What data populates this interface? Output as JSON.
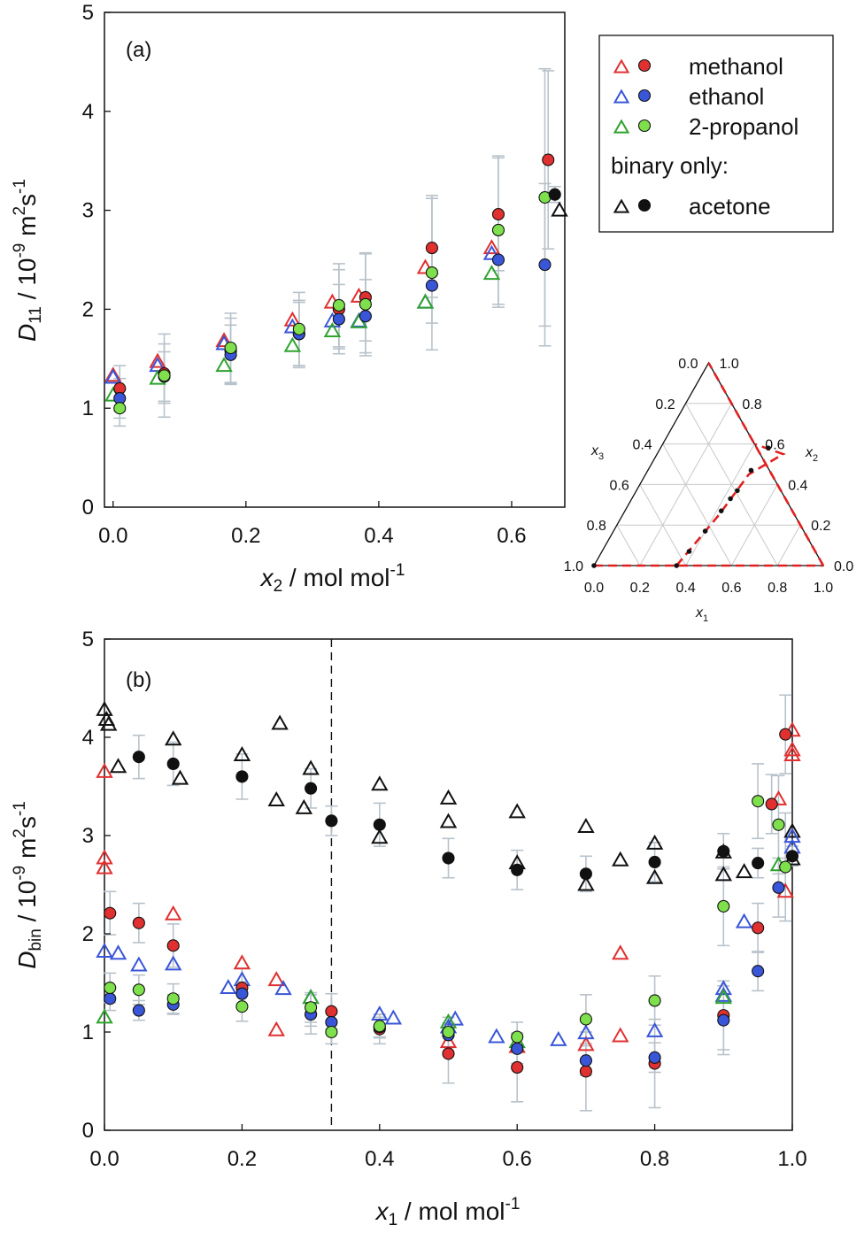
{
  "colors": {
    "methanol": "#e03030",
    "ethanol": "#3a56d8",
    "2-propanol": "#2ea32e",
    "2-propanol_fill": "#7ee04c",
    "acetone": "#111111",
    "errorbar": "#b8c2ca",
    "dashed_red": "#e02020"
  },
  "chart_data": [
    {
      "type": "scatter",
      "panel_label": "(a)",
      "xlabel": {
        "sym": "x",
        "sub": "2",
        "unit": " / mol mol",
        "sup": "-1"
      },
      "ylabel": {
        "sym": "D",
        "sub": "11",
        "unit": " / 10",
        "sup1": "-9",
        "unit2": " m",
        "sup2": "2",
        "unit3": "s",
        "sup3": "-1"
      },
      "xlim": [
        -0.013,
        0.68
      ],
      "ylim": [
        0,
        5
      ],
      "xticks": [
        "0.0",
        "0.2",
        "0.4",
        "0.6"
      ],
      "yticks": [
        "0",
        "1",
        "2",
        "3",
        "4",
        "5"
      ],
      "legend": {
        "entries": [
          "methanol",
          "ethanol",
          "2-propanol"
        ],
        "note": "binary only:",
        "binary_entry": "acetone",
        "placement": "top-right"
      },
      "series": [
        {
          "name": "methanol",
          "marker": "triangle",
          "x": [
            0.0,
            0.067,
            0.167,
            0.27,
            0.33,
            0.37,
            0.47,
            0.57
          ],
          "y": [
            1.33,
            1.47,
            1.68,
            1.89,
            2.07,
            2.13,
            2.42,
            2.62
          ]
        },
        {
          "name": "methanol",
          "marker": "circle",
          "x": [
            0.01,
            0.077,
            0.177,
            0.28,
            0.34,
            0.38,
            0.48,
            0.58,
            0.655
          ],
          "y": [
            1.2,
            1.35,
            1.58,
            1.75,
            2.0,
            2.12,
            2.62,
            2.96,
            3.51
          ],
          "err": [
            0.23,
            0.3,
            0.33,
            0.34,
            0.4,
            0.44,
            0.5,
            0.57,
            0.9
          ]
        },
        {
          "name": "ethanol",
          "marker": "triangle",
          "x": [
            0.0,
            0.067,
            0.167,
            0.27,
            0.33,
            0.37,
            0.47,
            0.57
          ],
          "y": [
            1.31,
            1.43,
            1.65,
            1.82,
            1.88,
            1.88,
            2.07,
            2.56
          ]
        },
        {
          "name": "ethanol",
          "marker": "circle",
          "x": [
            0.01,
            0.077,
            0.177,
            0.28,
            0.34,
            0.38,
            0.48,
            0.58,
            0.65
          ],
          "y": [
            1.1,
            1.32,
            1.54,
            1.75,
            1.9,
            1.93,
            2.24,
            2.5,
            2.45
          ],
          "err": [
            0.2,
            0.25,
            0.3,
            0.32,
            0.35,
            0.37,
            0.38,
            0.48,
            0.82
          ]
        },
        {
          "name": "2-propanol",
          "marker": "triangle",
          "x": [
            0.0,
            0.067,
            0.167,
            0.27,
            0.33,
            0.37,
            0.47,
            0.57
          ],
          "y": [
            1.13,
            1.3,
            1.43,
            1.63,
            1.78,
            1.87,
            2.07,
            2.36
          ]
        },
        {
          "name": "2-propanol",
          "marker": "circle",
          "x": [
            0.01,
            0.077,
            0.177,
            0.28,
            0.34,
            0.38,
            0.48,
            0.58,
            0.65
          ],
          "y": [
            1.0,
            1.33,
            1.61,
            1.8,
            2.04,
            2.05,
            2.37,
            2.8,
            3.13
          ],
          "err": [
            0.18,
            0.42,
            0.35,
            0.37,
            0.42,
            0.52,
            0.78,
            0.75,
            1.3
          ]
        },
        {
          "name": "acetone",
          "marker": "triangle",
          "x": [
            0.672
          ],
          "y": [
            3.0
          ]
        },
        {
          "name": "acetone",
          "marker": "circle",
          "x": [
            0.665
          ],
          "y": [
            3.16
          ],
          "err": [
            0.08
          ]
        }
      ]
    },
    {
      "type": "ternary",
      "axis_labels": {
        "left": {
          "sym": "x",
          "sub": "3"
        },
        "right": {
          "sym": "x",
          "sub": "2"
        },
        "bottom": {
          "sym": "x",
          "sub": "1"
        }
      },
      "ticks": [
        "0.0",
        "0.2",
        "0.4",
        "0.6",
        "0.8",
        "1.0"
      ],
      "points": [
        {
          "x1": 0.36,
          "x2": 0.0
        },
        {
          "x1": 0.38,
          "x2": 0.07
        },
        {
          "x1": 0.4,
          "x2": 0.17
        },
        {
          "x1": 0.42,
          "x2": 0.27
        },
        {
          "x1": 0.43,
          "x2": 0.33
        },
        {
          "x1": 0.44,
          "x2": 0.37
        },
        {
          "x1": 0.45,
          "x2": 0.47
        },
        {
          "x1": 0.47,
          "x2": 0.58
        },
        {
          "x1": 0.0,
          "x2": 0.0
        }
      ],
      "dashed_paths": [
        [
          [
            0.0,
            0.0
          ],
          [
            1.0,
            0.0
          ]
        ],
        [
          [
            1.0,
            0.0
          ],
          [
            0.0,
            1.0
          ]
        ],
        [
          [
            0.36,
            0.0
          ],
          [
            0.42,
            0.25
          ],
          [
            0.45,
            0.45
          ],
          [
            0.5,
            0.5
          ],
          [
            0.55,
            0.55
          ],
          [
            0.4,
            0.6
          ]
        ]
      ]
    },
    {
      "type": "scatter",
      "panel_label": "(b)",
      "xlabel": {
        "sym": "x",
        "sub": "1",
        "unit": " / mol mol",
        "sup": "-1"
      },
      "ylabel": {
        "sym": "D",
        "sub": "bin",
        "unit": " / 10",
        "sup1": "-9",
        "unit2": " m",
        "sup2": "2",
        "unit3": "s",
        "sup3": "-1"
      },
      "xlim": [
        0,
        1.0
      ],
      "ylim": [
        0,
        5
      ],
      "xticks": [
        "0.0",
        "0.2",
        "0.4",
        "0.6",
        "0.8",
        "1.0"
      ],
      "yticks": [
        "0",
        "1",
        "2",
        "3",
        "4",
        "5"
      ],
      "vline_x": 0.33,
      "series": [
        {
          "name": "acetone",
          "marker": "triangle",
          "x": [
            0.0,
            0.003,
            0.006,
            0.02,
            0.1,
            0.11,
            0.2,
            0.25,
            0.255,
            0.29,
            0.3,
            0.4,
            0.4,
            0.5,
            0.5,
            0.6,
            0.6,
            0.7,
            0.7,
            0.75,
            0.8,
            0.8,
            0.9,
            0.9,
            0.93,
            1.0,
            1.0
          ],
          "y": [
            4.28,
            4.18,
            4.13,
            3.7,
            3.98,
            3.58,
            3.82,
            3.36,
            4.14,
            3.28,
            3.68,
            3.52,
            2.98,
            3.38,
            3.14,
            3.24,
            2.72,
            3.09,
            2.5,
            2.75,
            2.92,
            2.57,
            2.6,
            2.83,
            2.63,
            3.04,
            2.76
          ]
        },
        {
          "name": "acetone",
          "marker": "circle",
          "x": [
            0.05,
            0.1,
            0.2,
            0.3,
            0.33,
            0.4,
            0.5,
            0.6,
            0.7,
            0.8,
            0.9,
            0.95,
            1.0
          ],
          "y": [
            3.8,
            3.73,
            3.6,
            3.48,
            3.15,
            3.11,
            2.77,
            2.65,
            2.61,
            2.73,
            2.84,
            2.72,
            2.79
          ],
          "err": [
            0.22,
            0.22,
            0.23,
            0.2,
            0.15,
            0.22,
            0.2,
            0.2,
            0.18,
            0.2,
            0.18,
            0.15,
            0.1
          ]
        },
        {
          "name": "methanol",
          "marker": "triangle",
          "x": [
            0.0,
            0.0,
            0.0,
            0.1,
            0.2,
            0.25,
            0.25,
            0.5,
            0.6,
            0.7,
            0.75,
            0.75,
            0.98,
            0.99,
            1.0,
            1.0,
            1.0
          ],
          "y": [
            3.65,
            2.77,
            2.67,
            2.2,
            1.7,
            1.53,
            1.02,
            0.9,
            0.85,
            0.87,
            0.96,
            1.8,
            3.37,
            2.43,
            4.07,
            3.87,
            3.82
          ]
        },
        {
          "name": "methanol",
          "marker": "circle",
          "x": [
            0.008,
            0.05,
            0.1,
            0.2,
            0.3,
            0.33,
            0.4,
            0.5,
            0.6,
            0.7,
            0.8,
            0.9,
            0.95,
            0.97,
            0.99
          ],
          "y": [
            2.21,
            2.11,
            1.88,
            1.45,
            1.18,
            1.21,
            1.03,
            0.78,
            0.64,
            0.6,
            0.68,
            1.17,
            2.06,
            3.32,
            4.03
          ],
          "err": [
            0.22,
            0.2,
            0.22,
            0.2,
            0.2,
            0.18,
            0.15,
            0.3,
            0.35,
            0.4,
            0.45,
            0.35,
            0.25,
            0.3,
            0.4
          ]
        },
        {
          "name": "ethanol",
          "marker": "triangle",
          "x": [
            0.0,
            0.02,
            0.05,
            0.1,
            0.18,
            0.2,
            0.26,
            0.3,
            0.4,
            0.42,
            0.5,
            0.51,
            0.57,
            0.66,
            0.7,
            0.8,
            0.9,
            0.9,
            0.93,
            1.0,
            1.0
          ],
          "y": [
            1.82,
            1.8,
            1.68,
            1.69,
            1.45,
            1.53,
            1.44,
            1.35,
            1.18,
            1.14,
            1.05,
            1.13,
            0.95,
            0.92,
            0.99,
            1.01,
            1.44,
            1.37,
            2.12,
            2.88,
            2.99
          ]
        },
        {
          "name": "ethanol",
          "marker": "circle",
          "x": [
            0.008,
            0.05,
            0.1,
            0.2,
            0.3,
            0.33,
            0.4,
            0.5,
            0.6,
            0.7,
            0.8,
            0.9,
            0.95,
            0.98
          ],
          "y": [
            1.34,
            1.22,
            1.28,
            1.39,
            1.18,
            1.1,
            1.05,
            0.97,
            0.83,
            0.71,
            0.74,
            1.12,
            1.62,
            2.47
          ],
          "err": [
            0.12,
            0.1,
            0.1,
            0.12,
            0.12,
            0.1,
            0.1,
            0.12,
            0.15,
            0.15,
            0.15,
            0.35,
            0.2,
            0.3
          ]
        },
        {
          "name": "2-propanol",
          "marker": "triangle",
          "x": [
            0.0,
            0.3,
            0.5,
            0.6,
            0.9,
            0.98
          ],
          "y": [
            1.15,
            1.35,
            1.1,
            0.9,
            1.35,
            2.7
          ]
        },
        {
          "name": "2-propanol",
          "marker": "circle",
          "x": [
            0.008,
            0.05,
            0.1,
            0.2,
            0.3,
            0.33,
            0.4,
            0.5,
            0.6,
            0.7,
            0.8,
            0.9,
            0.95,
            0.98,
            0.99
          ],
          "y": [
            1.45,
            1.43,
            1.34,
            1.26,
            1.25,
            1.0,
            1.06,
            1.0,
            0.95,
            1.13,
            1.32,
            2.28,
            3.35,
            3.11,
            2.68
          ],
          "err": [
            0.15,
            0.15,
            0.15,
            0.15,
            0.15,
            0.12,
            0.12,
            0.15,
            0.15,
            0.25,
            0.25,
            0.4,
            0.38,
            0.5,
            0.55
          ]
        }
      ]
    }
  ]
}
